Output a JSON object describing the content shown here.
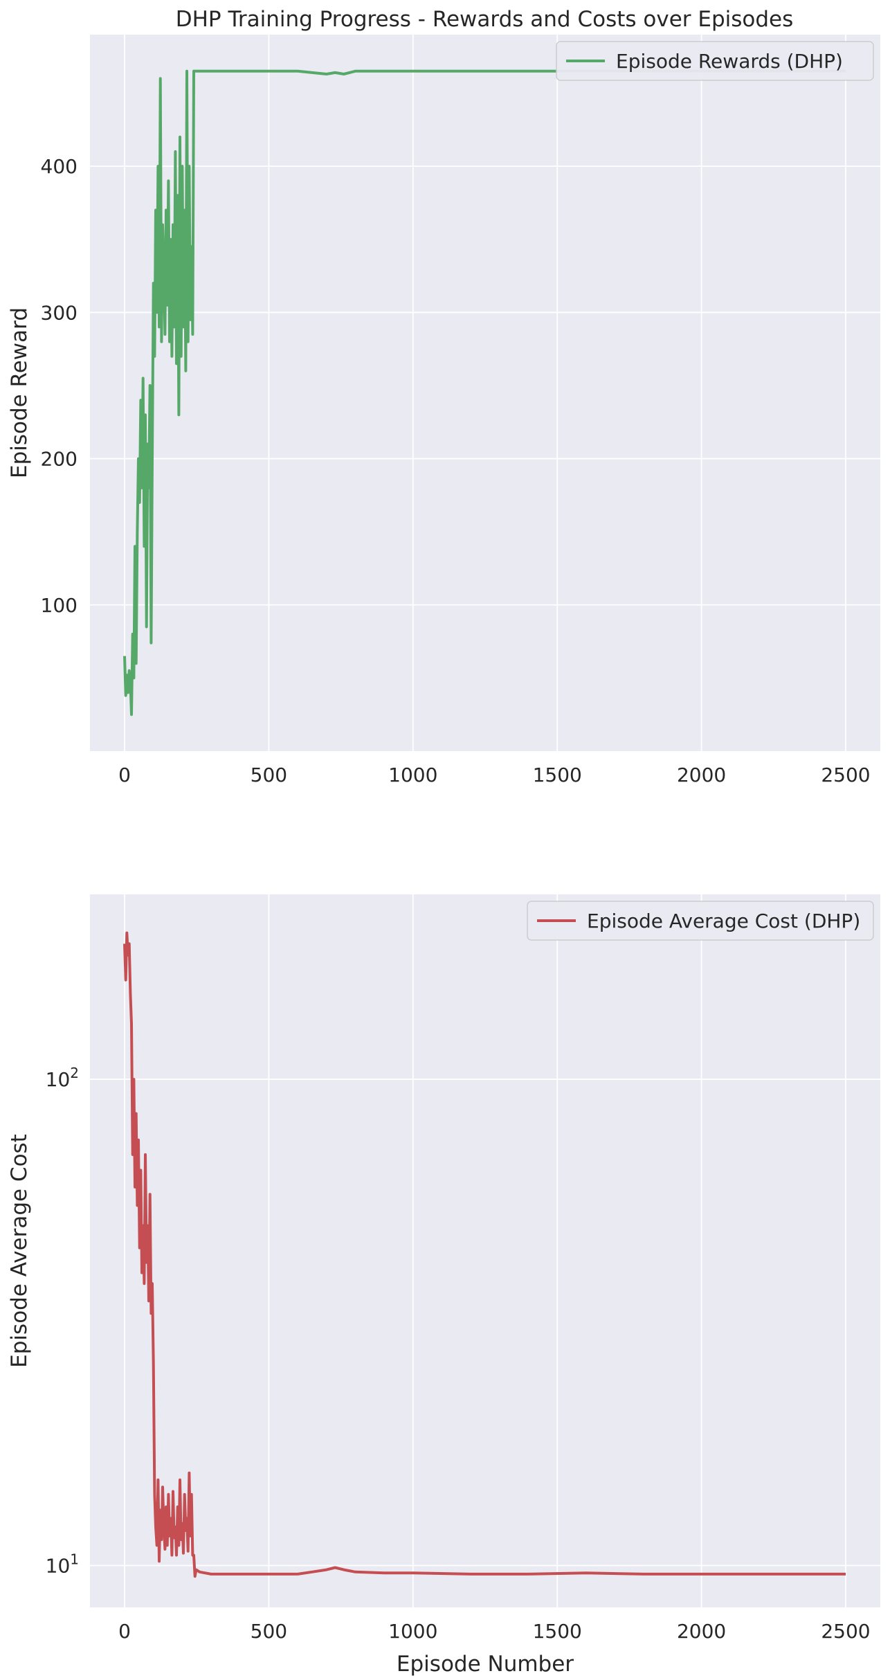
{
  "title": "DHP Training Progress - Rewards and Costs over Episodes",
  "colors": {
    "reward": "#55a868",
    "cost": "#c44e52",
    "plot_bg": "#eaeaf2",
    "grid": "#ffffff",
    "text": "#262626"
  },
  "chart_data": [
    {
      "type": "line",
      "title": "DHP Training Progress - Rewards and Costs over Episodes",
      "xlabel": "",
      "ylabel": "Episode Reward",
      "xlim": [
        -120,
        2620
      ],
      "ylim": [
        0,
        490
      ],
      "xticks": [
        0,
        500,
        1000,
        1500,
        2000,
        2500
      ],
      "xtick_labels": [
        "0",
        "500",
        "1000",
        "1500",
        "2000",
        "2500"
      ],
      "yticks": [
        100,
        200,
        300,
        400
      ],
      "ytick_labels": [
        "100",
        "200",
        "300",
        "400"
      ],
      "yscale": "linear",
      "grid": true,
      "legend_position": "top-right",
      "series": [
        {
          "name": "Episode Rewards (DHP)",
          "color": "#55a868",
          "x": [
            0,
            4,
            8,
            12,
            16,
            20,
            24,
            28,
            32,
            36,
            40,
            44,
            48,
            52,
            56,
            60,
            64,
            68,
            72,
            76,
            80,
            84,
            88,
            92,
            96,
            100,
            104,
            108,
            112,
            116,
            120,
            124,
            128,
            132,
            136,
            140,
            144,
            148,
            152,
            156,
            160,
            164,
            168,
            172,
            176,
            180,
            184,
            188,
            192,
            196,
            200,
            204,
            208,
            212,
            216,
            220,
            224,
            228,
            232,
            236,
            240,
            244,
            248,
            260,
            300,
            400,
            500,
            600,
            650,
            700,
            730,
            760,
            800,
            900,
            1000,
            1200,
            1400,
            1600,
            1800,
            2000,
            2200,
            2400,
            2500
          ],
          "y": [
            65,
            38,
            52,
            40,
            55,
            47,
            25,
            80,
            50,
            140,
            60,
            150,
            200,
            170,
            240,
            180,
            255,
            140,
            230,
            85,
            210,
            180,
            250,
            74,
            200,
            320,
            270,
            370,
            300,
            400,
            290,
            460,
            280,
            360,
            330,
            285,
            370,
            305,
            390,
            280,
            350,
            270,
            360,
            290,
            410,
            265,
            380,
            230,
            420,
            270,
            400,
            290,
            370,
            260,
            465,
            280,
            400,
            295,
            345,
            285,
            465,
            465,
            465,
            465,
            465,
            465,
            465,
            465,
            464,
            463,
            464,
            463,
            465,
            465,
            465,
            465,
            465,
            465,
            465,
            465,
            465,
            465,
            465
          ]
        }
      ]
    },
    {
      "type": "line",
      "title": "",
      "xlabel": "Episode Number",
      "ylabel": "Episode Average Cost",
      "xlim": [
        -120,
        2620
      ],
      "ylim": [
        8.2,
        240
      ],
      "xticks": [
        0,
        500,
        1000,
        1500,
        2000,
        2500
      ],
      "xtick_labels": [
        "0",
        "500",
        "1000",
        "1500",
        "2000",
        "2500"
      ],
      "yticks": [
        10,
        100
      ],
      "ytick_labels": [
        "10^1",
        "10^2"
      ],
      "yscale": "log",
      "grid": true,
      "legend_position": "top-right",
      "series": [
        {
          "name": "Episode Average Cost (DHP)",
          "color": "#c44e52",
          "x": [
            0,
            4,
            8,
            12,
            16,
            20,
            24,
            28,
            32,
            36,
            40,
            44,
            48,
            52,
            56,
            60,
            64,
            68,
            72,
            76,
            80,
            84,
            88,
            92,
            96,
            100,
            104,
            108,
            112,
            116,
            120,
            124,
            128,
            132,
            136,
            140,
            144,
            148,
            152,
            156,
            160,
            164,
            168,
            172,
            176,
            180,
            184,
            188,
            192,
            196,
            200,
            204,
            208,
            212,
            216,
            220,
            224,
            228,
            232,
            236,
            240,
            244,
            248,
            260,
            300,
            400,
            500,
            600,
            650,
            700,
            730,
            760,
            800,
            900,
            1000,
            1200,
            1400,
            1600,
            1800,
            2000,
            2200,
            2400,
            2500
          ],
          "y": [
            190,
            160,
            200,
            180,
            190,
            150,
            130,
            70,
            100,
            60,
            85,
            55,
            75,
            45,
            65,
            40,
            50,
            38,
            70,
            42,
            50,
            35,
            58,
            33,
            38,
            26,
            14,
            12,
            11,
            15,
            10.2,
            13,
            11.3,
            14.5,
            12,
            10.8,
            13.2,
            11,
            14,
            11.5,
            12.5,
            10.5,
            14.2,
            11.4,
            12,
            10.5,
            13.2,
            11,
            15,
            11.3,
            12.2,
            10.6,
            14,
            11.8,
            12.5,
            10.7,
            15.5,
            11.5,
            14,
            10.5,
            10.5,
            9.5,
            9.8,
            9.7,
            9.6,
            9.6,
            9.6,
            9.6,
            9.7,
            9.8,
            9.9,
            9.8,
            9.7,
            9.65,
            9.65,
            9.6,
            9.6,
            9.65,
            9.6,
            9.6,
            9.6,
            9.6,
            9.6
          ]
        }
      ]
    }
  ]
}
